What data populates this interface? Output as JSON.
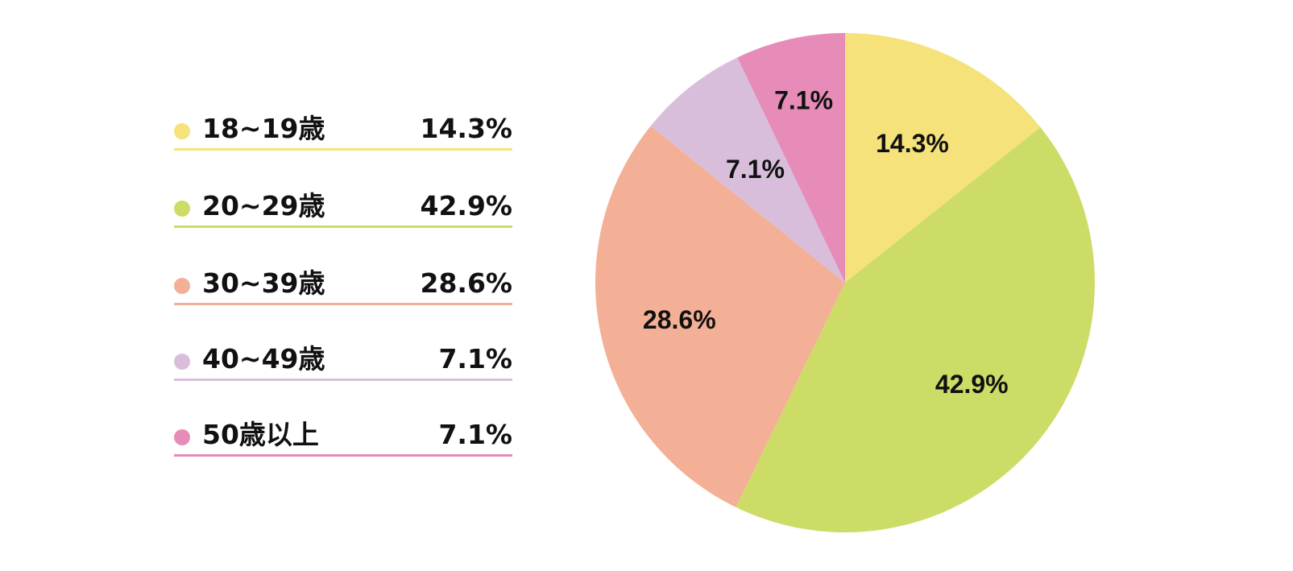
{
  "chart_data": {
    "type": "pie",
    "title": "",
    "categories": [
      "18~19歳",
      "20~29歳",
      "30~39歳",
      "40~49歳",
      "50歳以上"
    ],
    "values": [
      14.3,
      42.9,
      28.6,
      7.1,
      7.1
    ],
    "value_labels": [
      "14.3%",
      "42.9%",
      "28.6%",
      "7.1%",
      "7.1%"
    ],
    "colors": [
      "#f5e27a",
      "#cddc66",
      "#f3b096",
      "#d8bedb",
      "#e78cb8"
    ],
    "legend_position": "left",
    "start_angle": "top, clockwise"
  }
}
